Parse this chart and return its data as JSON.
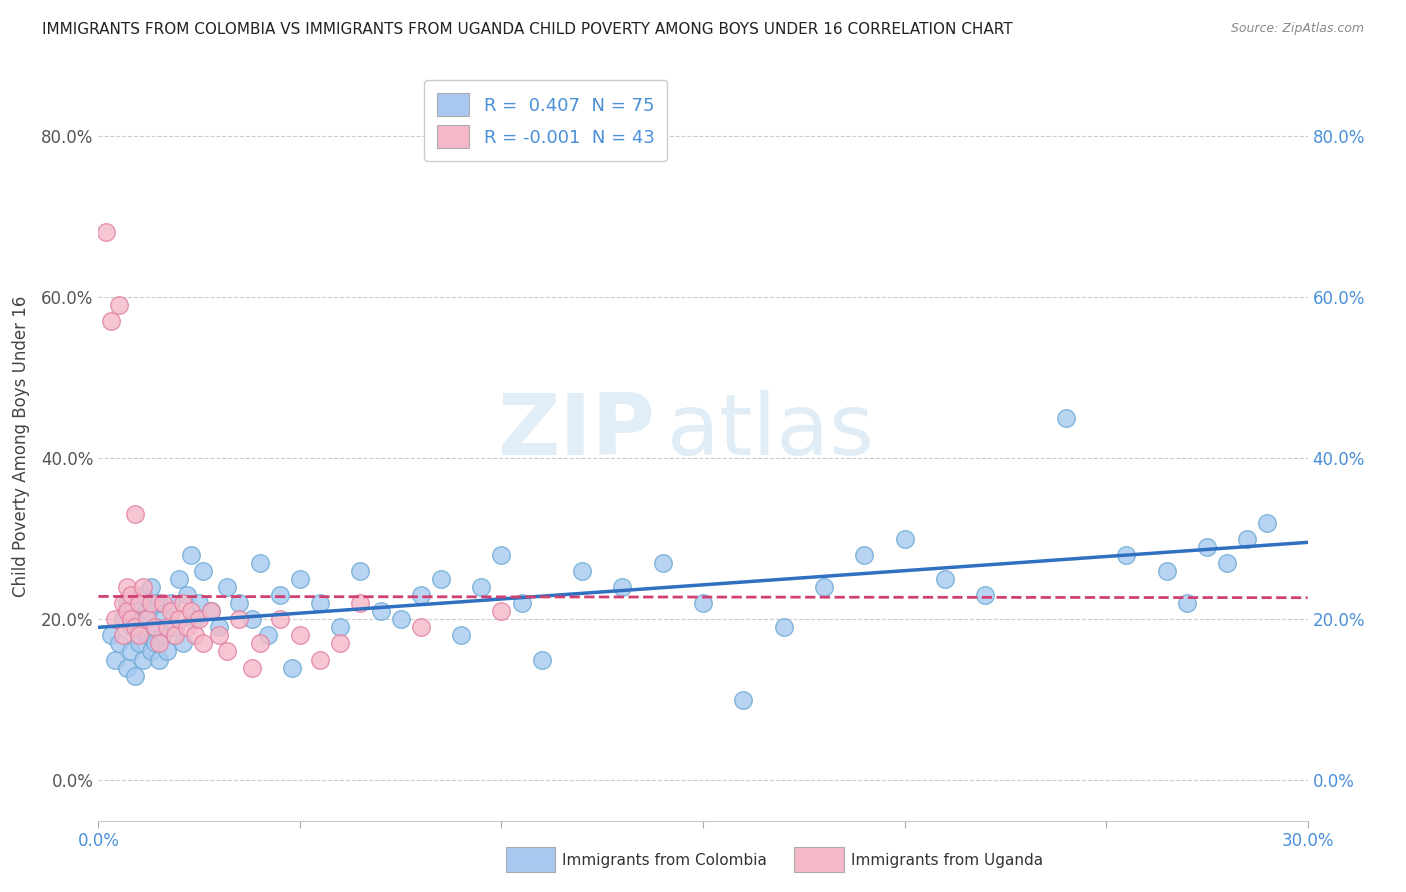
{
  "title": "IMMIGRANTS FROM COLOMBIA VS IMMIGRANTS FROM UGANDA CHILD POVERTY AMONG BOYS UNDER 16 CORRELATION CHART",
  "source": "Source: ZipAtlas.com",
  "ylabel": "Child Poverty Among Boys Under 16",
  "xlim": [
    0.0,
    0.3
  ],
  "ylim": [
    -0.05,
    0.88
  ],
  "yticks": [
    0.0,
    0.2,
    0.4,
    0.6,
    0.8
  ],
  "yticklabels": [
    "0.0%",
    "20.0%",
    "40.0%",
    "60.0%",
    "80.0%"
  ],
  "colombia_R": 0.407,
  "colombia_N": 75,
  "uganda_R": -0.001,
  "uganda_N": 43,
  "colombia_color": "#a8c8f0",
  "colombia_edge": "#6aaad4",
  "uganda_color": "#f5b8c8",
  "uganda_edge": "#e080a0",
  "trend_colombia_color": "#3070c0",
  "trend_uganda_color": "#d04070",
  "watermark_zip": "ZIP",
  "watermark_atlas": "atlas",
  "legend_label_colombia": "Immigrants from Colombia",
  "legend_label_uganda": "Immigrants from Uganda",
  "colombia_x": [
    0.003,
    0.004,
    0.005,
    0.006,
    0.007,
    0.007,
    0.008,
    0.008,
    0.009,
    0.009,
    0.01,
    0.01,
    0.011,
    0.011,
    0.012,
    0.012,
    0.013,
    0.013,
    0.014,
    0.014,
    0.015,
    0.015,
    0.016,
    0.016,
    0.017,
    0.018,
    0.019,
    0.02,
    0.021,
    0.022,
    0.023,
    0.024,
    0.025,
    0.026,
    0.028,
    0.03,
    0.032,
    0.035,
    0.038,
    0.04,
    0.042,
    0.045,
    0.048,
    0.05,
    0.055,
    0.06,
    0.065,
    0.07,
    0.075,
    0.08,
    0.085,
    0.09,
    0.095,
    0.1,
    0.105,
    0.11,
    0.12,
    0.13,
    0.14,
    0.15,
    0.16,
    0.17,
    0.18,
    0.19,
    0.2,
    0.21,
    0.22,
    0.24,
    0.255,
    0.265,
    0.27,
    0.275,
    0.28,
    0.285,
    0.29
  ],
  "colombia_y": [
    0.18,
    0.15,
    0.17,
    0.2,
    0.14,
    0.22,
    0.16,
    0.19,
    0.13,
    0.21,
    0.17,
    0.2,
    0.15,
    0.23,
    0.18,
    0.21,
    0.16,
    0.24,
    0.19,
    0.17,
    0.22,
    0.15,
    0.2,
    0.18,
    0.16,
    0.22,
    0.19,
    0.25,
    0.17,
    0.23,
    0.28,
    0.2,
    0.22,
    0.26,
    0.21,
    0.19,
    0.24,
    0.22,
    0.2,
    0.27,
    0.18,
    0.23,
    0.14,
    0.25,
    0.22,
    0.19,
    0.26,
    0.21,
    0.2,
    0.23,
    0.25,
    0.18,
    0.24,
    0.28,
    0.22,
    0.15,
    0.26,
    0.24,
    0.27,
    0.22,
    0.1,
    0.19,
    0.24,
    0.28,
    0.3,
    0.25,
    0.23,
    0.45,
    0.28,
    0.26,
    0.22,
    0.29,
    0.27,
    0.3,
    0.32
  ],
  "uganda_x": [
    0.002,
    0.003,
    0.004,
    0.005,
    0.006,
    0.006,
    0.007,
    0.007,
    0.008,
    0.008,
    0.009,
    0.009,
    0.01,
    0.01,
    0.011,
    0.012,
    0.013,
    0.014,
    0.015,
    0.016,
    0.017,
    0.018,
    0.019,
    0.02,
    0.021,
    0.022,
    0.023,
    0.024,
    0.025,
    0.026,
    0.028,
    0.03,
    0.032,
    0.035,
    0.038,
    0.04,
    0.045,
    0.05,
    0.055,
    0.06,
    0.065,
    0.08,
    0.1
  ],
  "uganda_y": [
    0.68,
    0.57,
    0.2,
    0.59,
    0.18,
    0.22,
    0.24,
    0.21,
    0.2,
    0.23,
    0.33,
    0.19,
    0.22,
    0.18,
    0.24,
    0.2,
    0.22,
    0.19,
    0.17,
    0.22,
    0.19,
    0.21,
    0.18,
    0.2,
    0.22,
    0.19,
    0.21,
    0.18,
    0.2,
    0.17,
    0.21,
    0.18,
    0.16,
    0.2,
    0.14,
    0.17,
    0.2,
    0.18,
    0.15,
    0.17,
    0.22,
    0.19,
    0.21
  ]
}
